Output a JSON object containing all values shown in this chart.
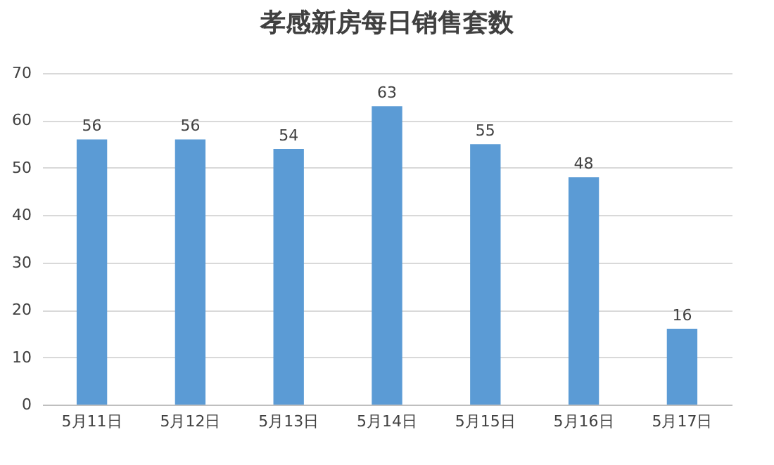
{
  "chart_data": {
    "type": "bar",
    "title": "孝感新房每日销售套数",
    "categories": [
      "5月11日",
      "5月12日",
      "5月13日",
      "5月14日",
      "5月15日",
      "5月16日",
      "5月17日"
    ],
    "values": [
      56,
      56,
      54,
      63,
      55,
      48,
      16
    ],
    "color": "#5b9bd5",
    "ylim": [
      0,
      70
    ],
    "yticks": [
      0,
      10,
      20,
      30,
      40,
      50,
      60,
      70
    ],
    "grid": "y",
    "data_labels": true
  }
}
